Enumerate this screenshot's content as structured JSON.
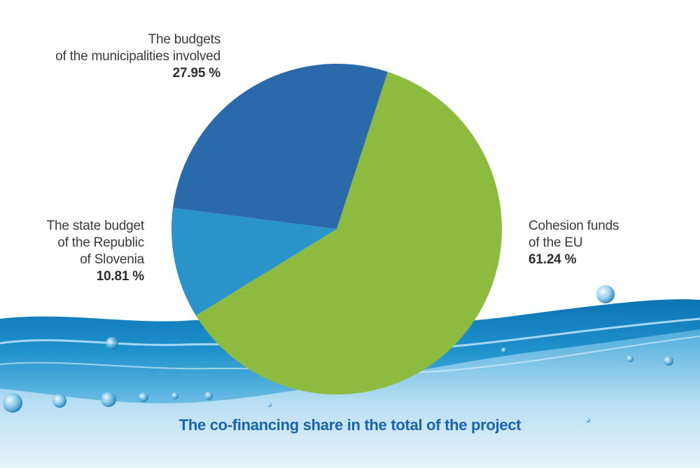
{
  "chart_data": {
    "type": "pie",
    "title": "The co-financing share in the total of the project",
    "slices": [
      {
        "label_lines": [
          "Cohesion funds",
          "of the EU"
        ],
        "value": 61.24,
        "value_text": "61.24 %",
        "color": "#8dbb3f"
      },
      {
        "label_lines": [
          "The state budget",
          "of the Republic",
          "of Slovenia"
        ],
        "value": 10.81,
        "value_text": "10.81 %",
        "color": "#2a93c9"
      },
      {
        "label_lines": [
          "The budgets",
          "of the municipalities involved"
        ],
        "value": 27.95,
        "value_text": "27.95 %",
        "color": "#2a6aab"
      }
    ]
  },
  "background": {
    "water_colors": [
      "#dff0fa",
      "#7fc6e8",
      "#1f8fc9",
      "#0a6aa8"
    ],
    "title_color": "#1b63b0"
  }
}
